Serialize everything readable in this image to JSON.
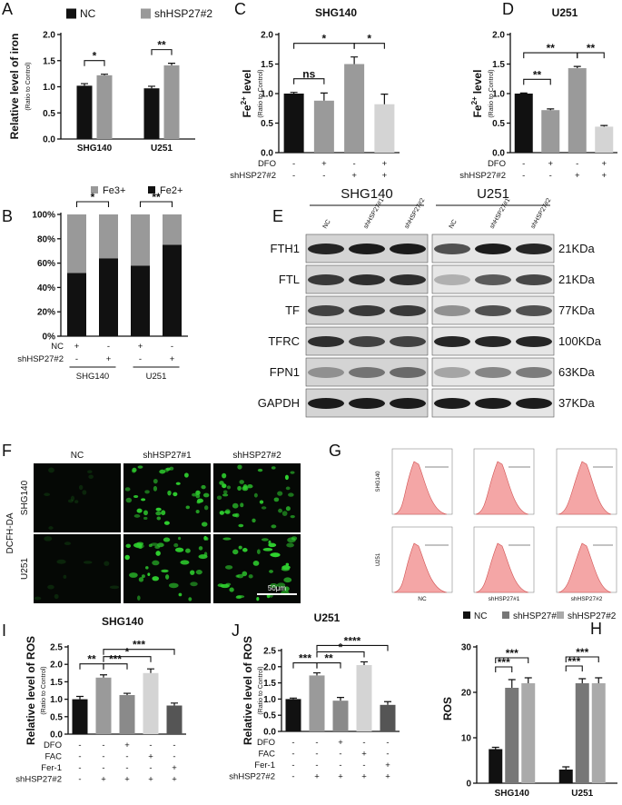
{
  "chart_data": [
    {
      "label": "A",
      "type": "bar",
      "ylabel": "Relative level of iron",
      "ylabel_note": "(Ratio to Control)",
      "categories": [
        "SHG140",
        "U251"
      ],
      "series": [
        {
          "name": "NC",
          "color": "#111111",
          "values": [
            1.02,
            0.97
          ],
          "errors": [
            0.04,
            0.04
          ]
        },
        {
          "name": "shHSP27#2",
          "color": "#999999",
          "values": [
            1.22,
            1.41
          ],
          "errors": [
            0.02,
            0.04
          ]
        }
      ],
      "ylim": [
        0,
        2
      ],
      "yticks": [
        {
          "value": 0,
          "label": "0.0"
        },
        {
          "value": 0.5,
          "label": "0.5"
        },
        {
          "value": 1,
          "label": "1.0"
        },
        {
          "value": 1.5,
          "label": "1.5"
        },
        {
          "value": 2,
          "label": "2.0"
        }
      ],
      "significance": [
        {
          "label": "*",
          "category": 0,
          "between": [
            0,
            1
          ]
        },
        {
          "label": "**",
          "category": 1,
          "between": [
            0,
            1
          ]
        }
      ]
    },
    {
      "label": "B",
      "type": "stacked_bar",
      "series": [
        {
          "name": "Fe2+",
          "color": "#111111",
          "values": [
            52,
            64,
            58,
            75
          ]
        },
        {
          "name": "Fe3+",
          "color": "#999999",
          "values": [
            48,
            36,
            42,
            25
          ]
        }
      ],
      "ylim": [
        0,
        100
      ],
      "yticks": [
        {
          "value": 0,
          "label": "0%"
        },
        {
          "value": 20,
          "label": "20%"
        },
        {
          "value": 40,
          "label": "40%"
        },
        {
          "value": 60,
          "label": "60%"
        },
        {
          "value": 80,
          "label": "80%"
        },
        {
          "value": 100,
          "label": "100%"
        }
      ],
      "significance": [
        {
          "label": "*",
          "between": [
            0,
            1
          ]
        },
        {
          "label": "**",
          "between": [
            2,
            3
          ]
        }
      ],
      "conditions": [
        {
          "name": "NC",
          "marks": [
            "+",
            "-",
            "+",
            "-"
          ]
        },
        {
          "name": "shHSP27#2",
          "marks": [
            "-",
            "+",
            "-",
            "+"
          ]
        }
      ],
      "groups": [
        "SHG140",
        "U251"
      ]
    },
    {
      "label": "C",
      "type": "bar",
      "title": "SHG140",
      "ylabel": "Fe",
      "ylabel_sup": "2+",
      "ylabel_rest": "level",
      "ylabel_note": "(Ratio to Control)",
      "values": [
        1.0,
        0.88,
        1.5,
        0.82
      ],
      "errors": [
        0.02,
        0.13,
        0.12,
        0.17
      ],
      "colors": [
        "#111111",
        "#9a9a9a",
        "#9a9a9a",
        "#d4d4d4"
      ],
      "ylim": [
        0,
        2
      ],
      "yticks": [
        {
          "value": 0,
          "label": "0.0"
        },
        {
          "value": 0.5,
          "label": "0.5"
        },
        {
          "value": 1,
          "label": "1.0"
        },
        {
          "value": 1.5,
          "label": "1.5"
        },
        {
          "value": 2,
          "label": "2.0"
        }
      ],
      "significance": [
        {
          "label": "ns",
          "between": [
            0,
            1
          ]
        },
        {
          "label": "*",
          "between": [
            2,
            3
          ]
        },
        {
          "label": "*",
          "between": [
            0,
            2
          ]
        }
      ],
      "conditions": [
        {
          "name": "DFO",
          "marks": [
            "-",
            "+",
            "-",
            "+"
          ]
        },
        {
          "name": "shHSP27#2",
          "marks": [
            "-",
            "-",
            "+",
            "+"
          ]
        }
      ]
    },
    {
      "label": "D",
      "type": "bar",
      "title": "U251",
      "ylabel": "Fe",
      "ylabel_sup": "2+",
      "ylabel_rest": "level",
      "ylabel_note": "(Ratio to Control)",
      "values": [
        1.0,
        0.72,
        1.43,
        0.44
      ],
      "errors": [
        0.01,
        0.02,
        0.03,
        0.02
      ],
      "colors": [
        "#111111",
        "#9a9a9a",
        "#9a9a9a",
        "#d4d4d4"
      ],
      "ylim": [
        0,
        2
      ],
      "yticks": [
        {
          "value": 0,
          "label": "0.0"
        },
        {
          "value": 0.5,
          "label": "0.5"
        },
        {
          "value": 1,
          "label": "1.0"
        },
        {
          "value": 1.5,
          "label": "1.5"
        },
        {
          "value": 2,
          "label": "2.0"
        }
      ],
      "significance": [
        {
          "label": "**",
          "between": [
            0,
            1
          ]
        },
        {
          "label": "**",
          "between": [
            2,
            3
          ]
        },
        {
          "label": "**",
          "between": [
            0,
            2
          ]
        }
      ],
      "conditions": [
        {
          "name": "DFO",
          "marks": [
            "-",
            "+",
            "-",
            "+"
          ]
        },
        {
          "name": "shHSP27#2",
          "marks": [
            "-",
            "-",
            "+",
            "+"
          ]
        }
      ]
    },
    {
      "label": "I",
      "type": "bar",
      "title": "SHG140",
      "ylabel": "Relative level of ROS",
      "ylabel_note": "(Ratio to Control)",
      "values": [
        1.0,
        1.62,
        1.12,
        1.75,
        0.82
      ],
      "errors": [
        0.08,
        0.08,
        0.05,
        0.12,
        0.07
      ],
      "colors": [
        "#111111",
        "#9a9a9a",
        "#8a8a8a",
        "#d4d4d4",
        "#555555"
      ],
      "ylim": [
        0,
        2.5
      ],
      "yticks": [
        {
          "value": 0,
          "label": "0.0"
        },
        {
          "value": 0.5,
          "label": "0.5"
        },
        {
          "value": 1,
          "label": "1.0"
        },
        {
          "value": 1.5,
          "label": "1.5"
        },
        {
          "value": 2,
          "label": "2.0"
        },
        {
          "value": 2.5,
          "label": "2.5"
        }
      ],
      "significance": [
        {
          "label": "**",
          "between": [
            0,
            1
          ]
        },
        {
          "label": "***",
          "between": [
            1,
            2
          ]
        },
        {
          "label": "*",
          "between": [
            1,
            3
          ]
        },
        {
          "label": "***",
          "between": [
            1,
            4
          ]
        }
      ],
      "conditions": [
        {
          "name": "DFO",
          "marks": [
            "-",
            "-",
            "+",
            "-",
            "-"
          ]
        },
        {
          "name": "FAC",
          "marks": [
            "-",
            "-",
            "-",
            "+",
            "-"
          ]
        },
        {
          "name": "Fer-1",
          "marks": [
            "-",
            "-",
            "-",
            "-",
            "+"
          ]
        },
        {
          "name": "shHSP27#2",
          "marks": [
            "-",
            "+",
            "+",
            "+",
            "+"
          ]
        }
      ]
    },
    {
      "label": "J",
      "type": "bar",
      "title": "U251",
      "ylabel": "Relative level of ROS",
      "ylabel_note": "(Ratio to Control)",
      "values": [
        1.0,
        1.73,
        0.95,
        2.05,
        0.82
      ],
      "errors": [
        0.03,
        0.08,
        0.1,
        0.1,
        0.1
      ],
      "colors": [
        "#111111",
        "#9a9a9a",
        "#8a8a8a",
        "#d4d4d4",
        "#555555"
      ],
      "ylim": [
        0,
        2.5
      ],
      "yticks": [
        {
          "value": 0,
          "label": "0.0"
        },
        {
          "value": 0.5,
          "label": "0.5"
        },
        {
          "value": 1,
          "label": "1.0"
        },
        {
          "value": 1.5,
          "label": "1.5"
        },
        {
          "value": 2,
          "label": "2.0"
        },
        {
          "value": 2.5,
          "label": "2.5"
        }
      ],
      "significance": [
        {
          "label": "***",
          "between": [
            0,
            1
          ]
        },
        {
          "label": "**",
          "between": [
            1,
            2
          ]
        },
        {
          "label": "*",
          "between": [
            1,
            3
          ]
        },
        {
          "label": "****",
          "between": [
            1,
            4
          ]
        }
      ],
      "conditions": [
        {
          "name": "DFO",
          "marks": [
            "-",
            "-",
            "+",
            "-",
            "-"
          ]
        },
        {
          "name": "FAC",
          "marks": [
            "-",
            "-",
            "-",
            "+",
            "-"
          ]
        },
        {
          "name": "Fer-1",
          "marks": [
            "-",
            "-",
            "-",
            "-",
            "+"
          ]
        },
        {
          "name": "shHSP27#2",
          "marks": [
            "-",
            "+",
            "+",
            "+",
            "+"
          ]
        }
      ]
    },
    {
      "label": "H",
      "type": "bar",
      "ylabel": "ROS",
      "categories": [
        "SHG140",
        "U251"
      ],
      "series": [
        {
          "name": "NC",
          "color": "#111111",
          "values": [
            7.5,
            3.0
          ],
          "errors": [
            0.4,
            0.6
          ]
        },
        {
          "name": "shHSP27#1",
          "color": "#777777",
          "values": [
            21,
            22
          ],
          "errors": [
            1.8,
            1.0
          ]
        },
        {
          "name": "shHSP27#2",
          "color": "#aaaaaa",
          "values": [
            22,
            22
          ],
          "errors": [
            1.2,
            1.2
          ]
        }
      ],
      "ylim": [
        0,
        30
      ],
      "yticks": [
        0,
        10,
        20,
        30
      ],
      "significance": [
        {
          "label": "***",
          "category": 0,
          "between": [
            0,
            1
          ]
        },
        {
          "label": "***",
          "category": 0,
          "between": [
            0,
            2
          ]
        },
        {
          "label": "***",
          "category": 1,
          "between": [
            0,
            1
          ]
        },
        {
          "label": "***",
          "category": 1,
          "between": [
            0,
            2
          ]
        }
      ]
    }
  ],
  "blot": {
    "label": "E",
    "cell_lines": [
      "SHG140",
      "U251"
    ],
    "lanes": [
      "NC",
      "shHSP27#1",
      "shHSP27#2"
    ],
    "proteins": [
      {
        "name": "FTH1",
        "size": "21KDa"
      },
      {
        "name": "FTL",
        "size": "21KDa"
      },
      {
        "name": "TF",
        "size": "77KDa"
      },
      {
        "name": "TFRC",
        "size": "100KDa"
      },
      {
        "name": "FPN1",
        "size": "63KDa"
      },
      {
        "name": "GAPDH",
        "size": "37KDa"
      }
    ]
  },
  "microscopy": {
    "label": "F",
    "stain": "DCFH-DA",
    "columns": [
      "NC",
      "shHSP27#1",
      "shHSP27#2"
    ],
    "rows": [
      "SHG140",
      "U251"
    ],
    "scale_bar": "50μm"
  },
  "flow": {
    "label": "G",
    "columns": [
      "NC",
      "shHSP27#1",
      "shHSP27#2"
    ],
    "rows": [
      "SHG140",
      "U251"
    ]
  }
}
